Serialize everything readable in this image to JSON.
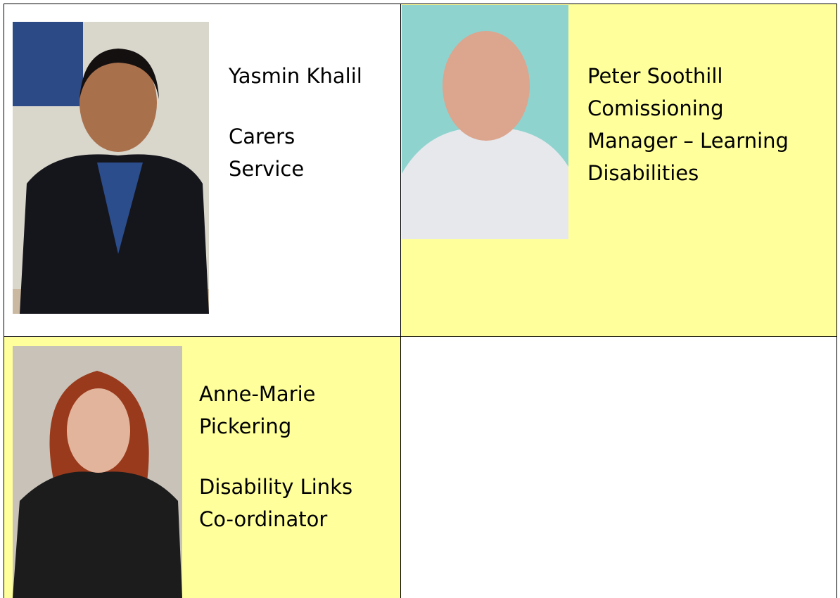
{
  "table": {
    "cells": [
      {
        "name_lines": [
          "Yasmin Khalil"
        ],
        "role_lines": [
          "Carers",
          "Service"
        ]
      },
      {
        "name_lines": [
          "Peter Soothill"
        ],
        "role_lines": [
          "Comissioning",
          "Manager – Learning",
          "Disabilities"
        ]
      },
      {
        "name_lines": [
          "Anne-Marie",
          "Pickering"
        ],
        "role_lines": [
          "Disability Links",
          "Co-ordinator"
        ]
      }
    ]
  }
}
